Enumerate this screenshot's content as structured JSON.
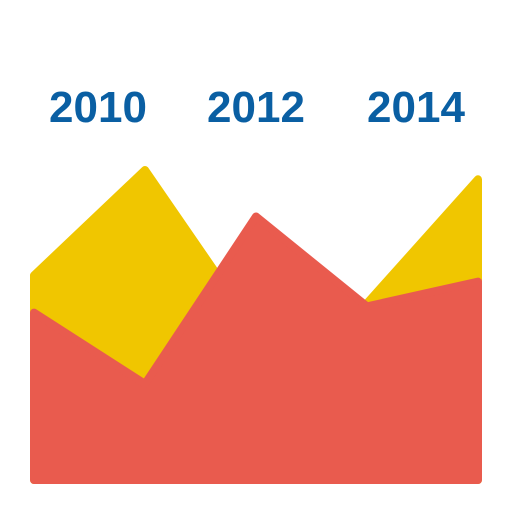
{
  "chart_data": {
    "type": "area",
    "title": "",
    "xlabel": "",
    "ylabel": "",
    "tick_labels": [
      "2010",
      "2012",
      "2014"
    ],
    "x": [
      0,
      1,
      2,
      3,
      4
    ],
    "ylim": [
      0,
      100
    ],
    "grid": false,
    "legend": "none",
    "series": [
      {
        "key": "yellow",
        "values": [
          66,
          100,
          48,
          57,
          97
        ]
      },
      {
        "key": "red",
        "values": [
          54,
          31,
          85,
          56,
          64
        ]
      }
    ]
  },
  "colors": {
    "background": "#ffffff",
    "tick_label": "#0a5fa3",
    "yellow": "#f0c600",
    "red": "#e95b4e"
  }
}
